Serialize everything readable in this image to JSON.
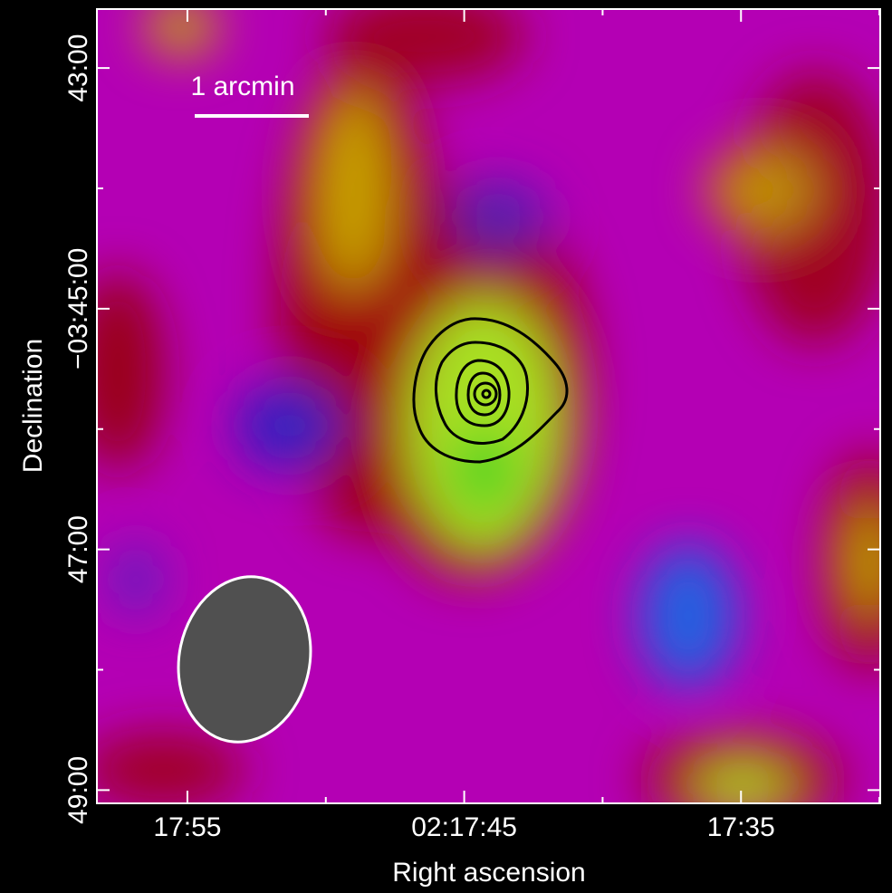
{
  "chart_data": {
    "type": "image",
    "xlabel": "Right ascension",
    "ylabel": "Declination",
    "xlim": [
      58.27,
      29.97
    ],
    "ylim": [
      42.51,
      49.11
    ],
    "xticks": [
      {
        "value": 55,
        "label": "17:55"
      },
      {
        "value": 45,
        "label": "02:17:45"
      },
      {
        "value": 35,
        "label": "17:35"
      }
    ],
    "xminor_ticks": [
      50,
      40,
      30
    ],
    "yticks": [
      {
        "value": 43,
        "label": "43:00"
      },
      {
        "value": 45,
        "label": "−03:45:00"
      },
      {
        "value": 47,
        "label": "47:00"
      },
      {
        "value": 49,
        "label": "49:00"
      }
    ],
    "yminor_ticks": [
      44,
      46,
      48
    ],
    "scale_bar_label": "1 arcmin"
  }
}
